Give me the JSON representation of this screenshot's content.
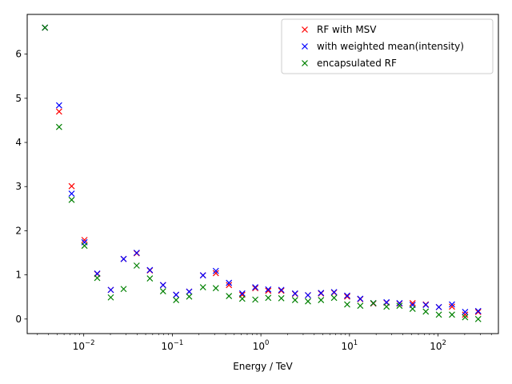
{
  "chart_data": {
    "type": "scatter",
    "xlabel": "Energy / TeV",
    "ylabel": "",
    "xscale": "log",
    "xlim": [
      0.0023,
      480
    ],
    "ylim": [
      -0.33,
      6.9
    ],
    "grid": false,
    "legend_position": "top-right",
    "marker": "x",
    "y_ticks": [
      {
        "value": 0,
        "label": "0"
      },
      {
        "value": 1,
        "label": "1"
      },
      {
        "value": 2,
        "label": "2"
      },
      {
        "value": 3,
        "label": "3"
      },
      {
        "value": 4,
        "label": "4"
      },
      {
        "value": 5,
        "label": "5"
      },
      {
        "value": 6,
        "label": "6"
      }
    ],
    "x_major_ticks": [
      {
        "value": 0.01,
        "base": "10",
        "exp": "−2"
      },
      {
        "value": 0.1,
        "base": "10",
        "exp": "−1"
      },
      {
        "value": 1,
        "base": "10",
        "exp": "0"
      },
      {
        "value": 10,
        "base": "10",
        "exp": "1"
      },
      {
        "value": 100,
        "base": "10",
        "exp": "2"
      }
    ],
    "x": [
      0.00365,
      0.00527,
      0.0073,
      0.0102,
      0.0142,
      0.0202,
      0.0282,
      0.0396,
      0.0558,
      0.0786,
      0.1104,
      0.155,
      0.222,
      0.31,
      0.436,
      0.616,
      0.864,
      1.21,
      1.7,
      2.43,
      3.4,
      4.77,
      6.7,
      9.42,
      13.24,
      18.6,
      26.2,
      36.7,
      51.6,
      72.7,
      102.1,
      143.6,
      202,
      283.9
    ],
    "series": [
      {
        "name": "RF with MSV",
        "color": "#ff0000",
        "values": [
          6.6,
          4.7,
          3.01,
          1.79,
          1.02,
          0.66,
          1.36,
          1.49,
          1.1,
          0.77,
          0.55,
          0.62,
          0.99,
          1.04,
          0.77,
          0.55,
          0.7,
          0.64,
          0.64,
          0.57,
          0.54,
          0.58,
          0.6,
          0.51,
          0.45,
          0.35,
          0.37,
          0.35,
          0.36,
          0.33,
          0.27,
          0.28,
          0.1,
          0.16
        ]
      },
      {
        "name": "with weighted mean(intensity)",
        "color": "#0000ff",
        "values": [
          6.6,
          4.84,
          2.84,
          1.74,
          1.03,
          0.66,
          1.36,
          1.5,
          1.11,
          0.77,
          0.55,
          0.62,
          0.99,
          1.09,
          0.82,
          0.58,
          0.72,
          0.67,
          0.66,
          0.58,
          0.54,
          0.59,
          0.61,
          0.53,
          0.46,
          0.36,
          0.38,
          0.36,
          0.32,
          0.32,
          0.27,
          0.33,
          0.16,
          0.18
        ]
      },
      {
        "name": "encapsulated RF",
        "color": "#008000",
        "values": [
          6.6,
          4.35,
          2.7,
          1.66,
          0.93,
          0.49,
          0.68,
          1.21,
          0.92,
          0.63,
          0.43,
          0.51,
          0.72,
          0.7,
          0.52,
          0.46,
          0.44,
          0.48,
          0.47,
          0.43,
          0.4,
          0.43,
          0.48,
          0.33,
          0.3,
          0.36,
          0.28,
          0.3,
          0.23,
          0.17,
          0.1,
          0.1,
          0.04,
          0.0
        ]
      }
    ]
  }
}
